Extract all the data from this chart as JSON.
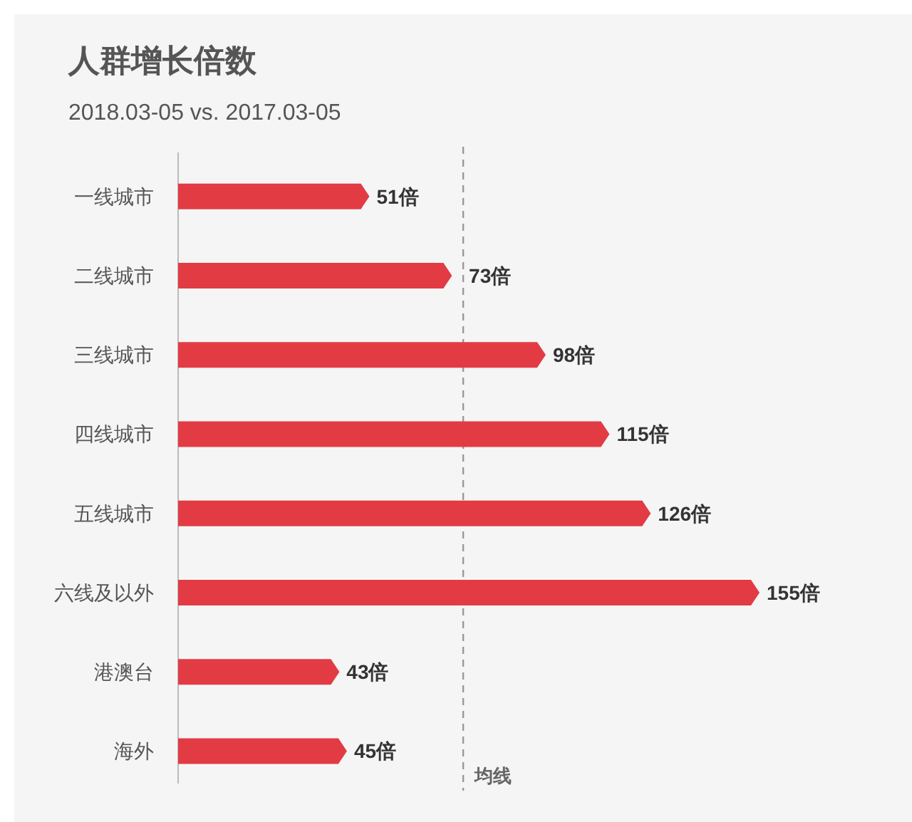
{
  "chart_data": {
    "type": "bar",
    "orientation": "horizontal",
    "title": "人群增长倍数",
    "subtitle": "2018.03-05 vs. 2017.03-05",
    "categories": [
      "一线城市",
      "二线城市",
      "三线城市",
      "四线城市",
      "五线城市",
      "六线及以外",
      "港澳台",
      "海外"
    ],
    "values": [
      51,
      73,
      98,
      115,
      126,
      155,
      43,
      45
    ],
    "value_labels": [
      "51倍",
      "73倍",
      "98倍",
      "115倍",
      "126倍",
      "155倍",
      "43倍",
      "45倍"
    ],
    "color": "#e23b44",
    "ref_lines": [
      {
        "axis": "x",
        "value": 76,
        "label": "均线",
        "color": "#999999",
        "line_style": "dashed"
      }
    ]
  }
}
